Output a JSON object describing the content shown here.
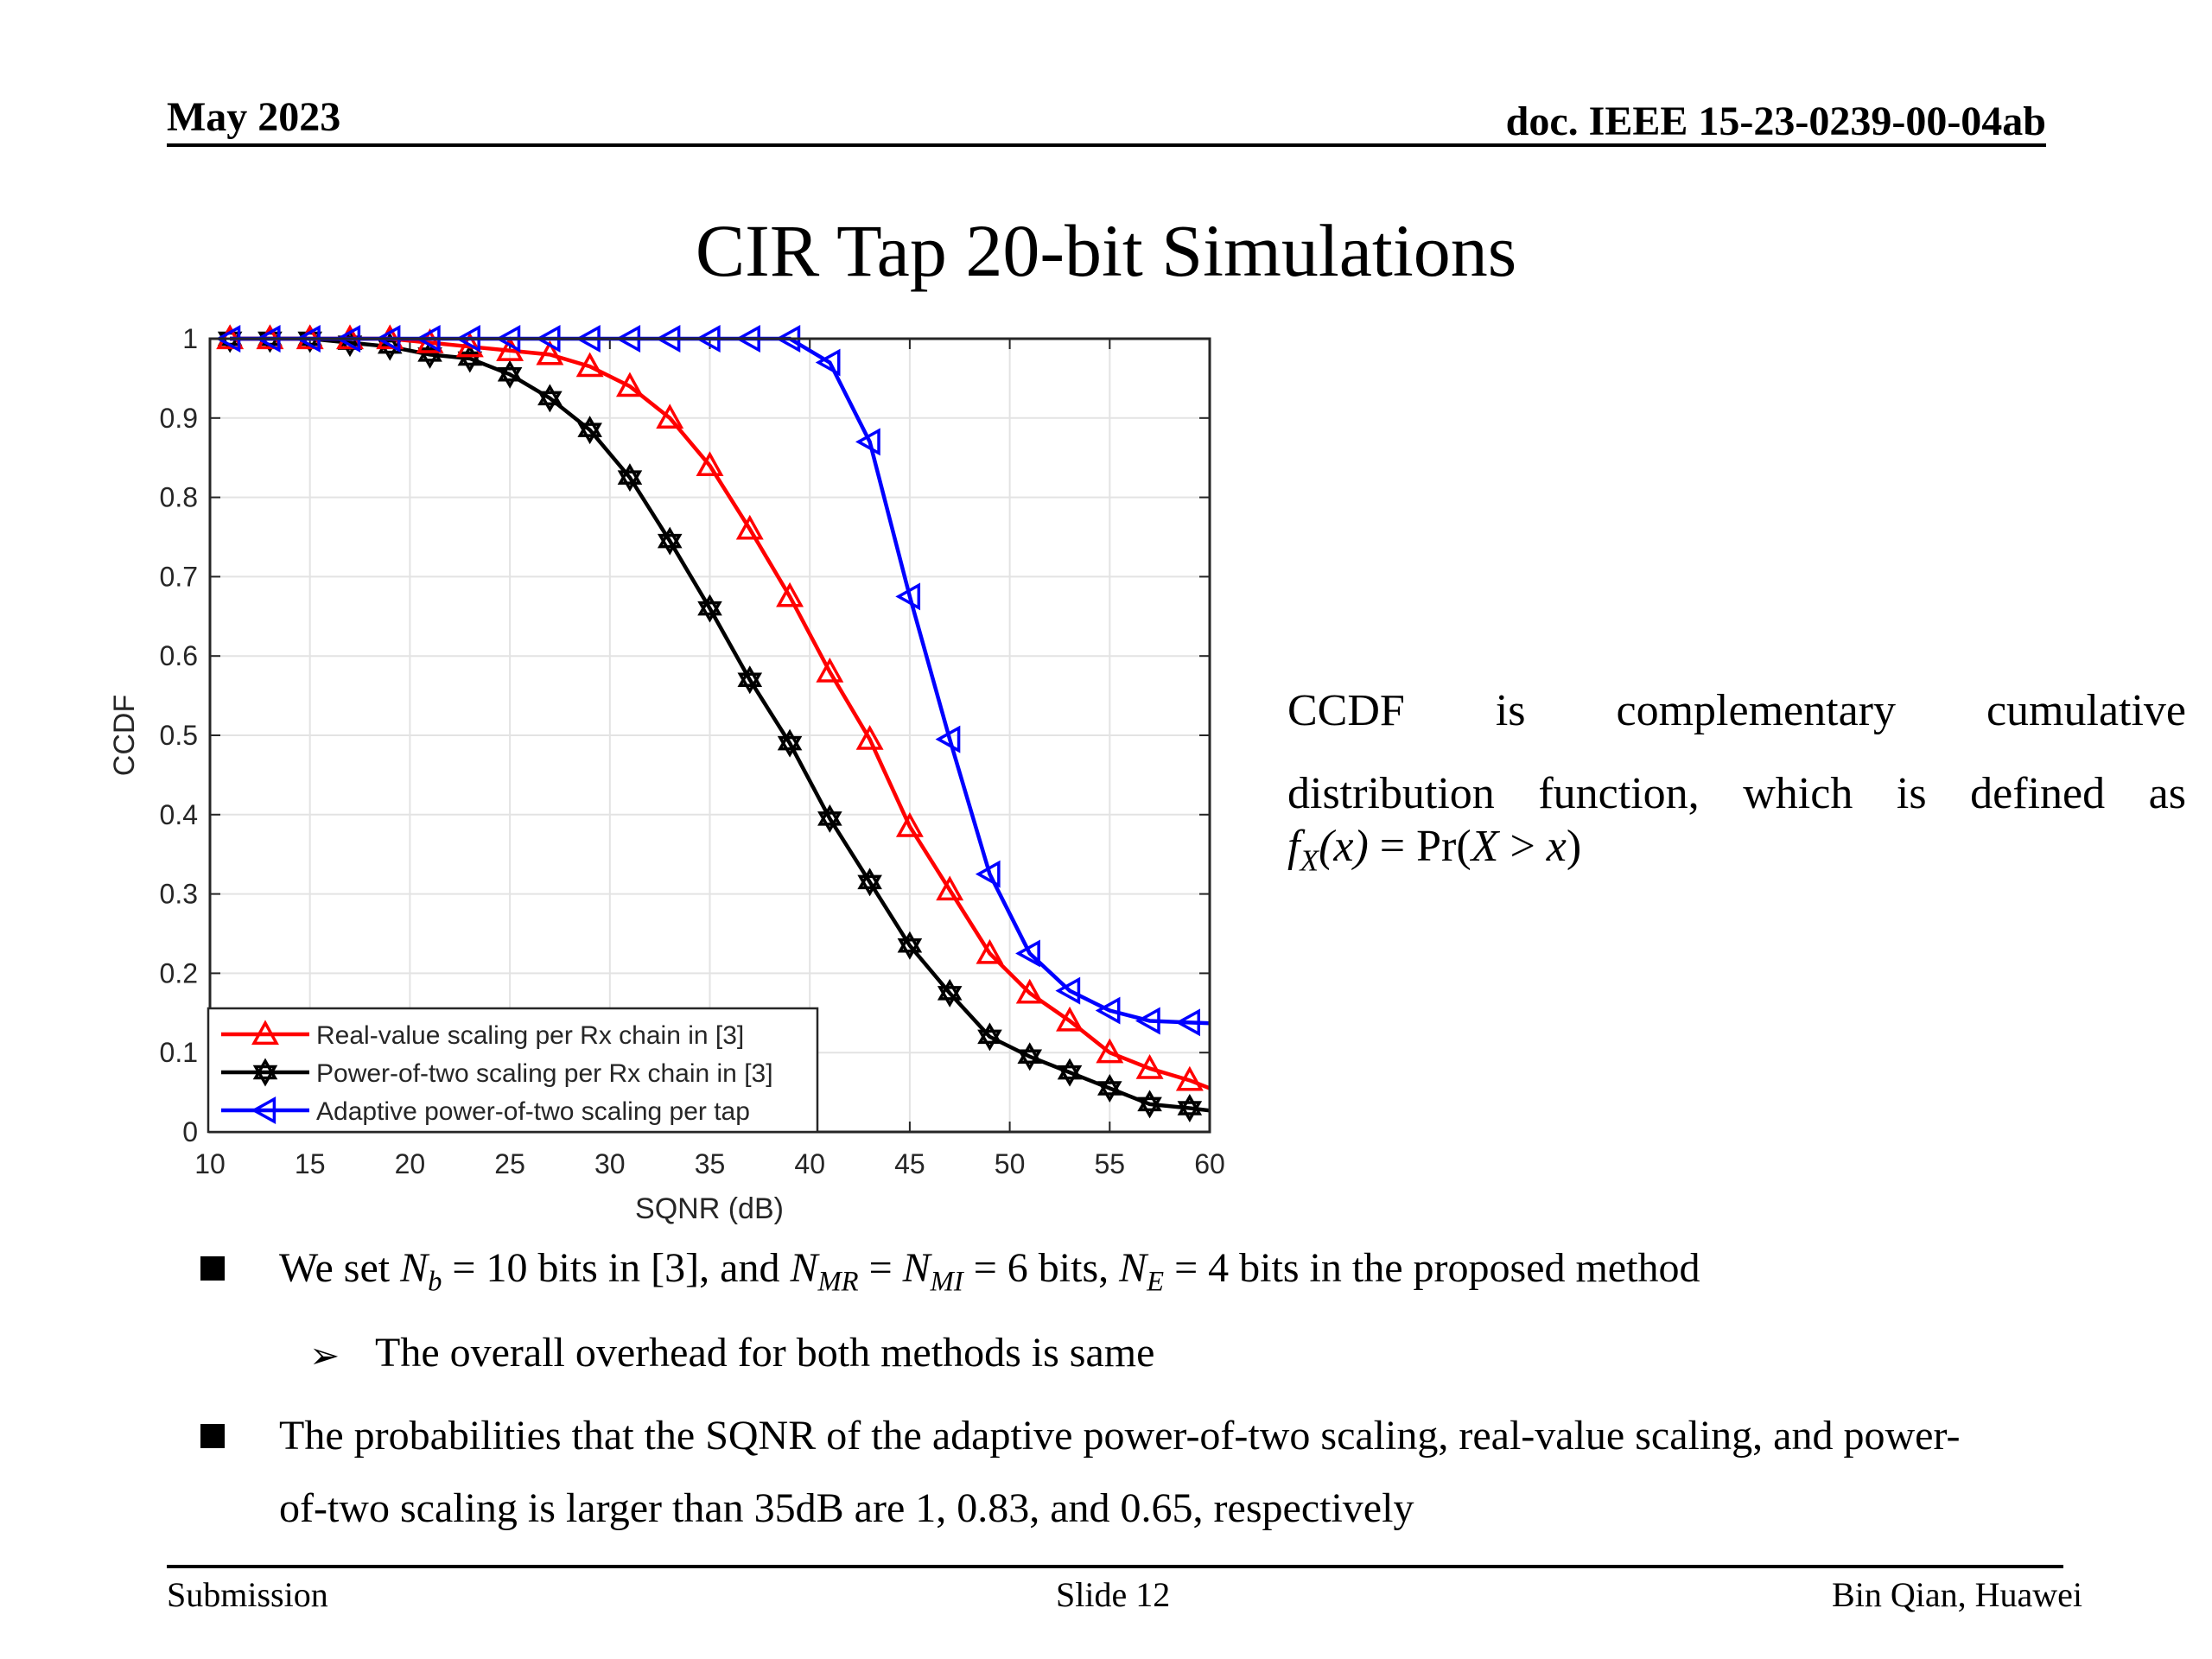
{
  "header": {
    "date": "May 2023",
    "doc_id": "doc. IEEE 15-23-0239-00-04ab"
  },
  "title": "CIR Tap 20-bit Simulations",
  "description": {
    "line1": "CCDF is complementary cumulative",
    "line2": "distribution function, which is defined as",
    "formula": {
      "lhs_f": "f",
      "lhs_sub": "X",
      "lhs_arg": "(x)",
      "eq": " = Pr(",
      "X": "X",
      "gt": " > ",
      "x": "x",
      "close": ")"
    }
  },
  "bullets": [
    {
      "parts": [
        "We set ",
        "N",
        "b",
        " = 10 bits in [3], and ",
        "N",
        "MR",
        " = ",
        "N",
        "MI",
        " = 6 bits, ",
        "N",
        "E",
        " = 4 bits in the proposed method"
      ]
    },
    {
      "sub": "The overall overhead for both methods is same"
    },
    {
      "line1": "The probabilities that the SQNR of the adaptive power-of-two scaling, real-value scaling, and power-",
      "line2": "of-two scaling is larger than 35dB are 1, 0.83, and 0.65, respectively"
    }
  ],
  "footer": {
    "left": "Submission",
    "center": "Slide 12",
    "right": "Bin Qian, Huawei"
  },
  "chart_data": {
    "type": "line",
    "title": "",
    "xlabel": "SQNR (dB)",
    "ylabel": "CCDF",
    "xlim": [
      10,
      60
    ],
    "ylim": [
      0,
      1
    ],
    "xticks": [
      10,
      15,
      20,
      25,
      30,
      35,
      40,
      45,
      50,
      55,
      60
    ],
    "yticks": [
      0,
      0.1,
      0.2,
      0.3,
      0.4,
      0.5,
      0.6,
      0.7,
      0.8,
      0.9,
      1
    ],
    "ytick_labels": [
      "0",
      "0.1",
      "0.2",
      "0.3",
      "0.4",
      "0.5",
      "0.6",
      "0.7",
      "0.8",
      "0.9",
      "1"
    ],
    "grid": true,
    "legend_position": "bottom-left",
    "x": [
      11,
      13,
      15,
      17,
      19,
      21,
      23,
      25,
      27,
      29,
      31,
      33,
      35,
      37,
      39,
      41,
      43,
      45,
      47,
      49,
      51,
      53,
      55,
      57,
      59
    ],
    "series": [
      {
        "name": "Real-value scaling per Rx chain in [3]",
        "color": "#ff0000",
        "marker": "triangle-up",
        "values": [
          1,
          1,
          1,
          1,
          1,
          0.995,
          0.99,
          0.985,
          0.98,
          0.965,
          0.94,
          0.9,
          0.84,
          0.76,
          0.675,
          0.58,
          0.495,
          0.385,
          0.305,
          0.225,
          0.175,
          0.14,
          0.1,
          0.08,
          0.065
        ],
        "end_value": 0.055
      },
      {
        "name": "Power-of-two scaling per Rx chain in [3]",
        "color": "#000000",
        "marker": "hexagram",
        "values": [
          1,
          1,
          1,
          0.995,
          0.99,
          0.98,
          0.975,
          0.955,
          0.925,
          0.885,
          0.825,
          0.745,
          0.66,
          0.57,
          0.49,
          0.395,
          0.315,
          0.235,
          0.175,
          0.12,
          0.095,
          0.075,
          0.055,
          0.035,
          0.03
        ],
        "end_value": 0.027
      },
      {
        "name": "Adaptive power-of-two scaling per tap",
        "color": "#0000ff",
        "marker": "triangle-left",
        "values": [
          1,
          1,
          1,
          1,
          1,
          1,
          1,
          1,
          1,
          1,
          1,
          1,
          1,
          1,
          1,
          0.97,
          0.87,
          0.675,
          0.495,
          0.325,
          0.225,
          0.178,
          0.153,
          0.14,
          0.138
        ],
        "end_value": 0.137
      }
    ]
  }
}
